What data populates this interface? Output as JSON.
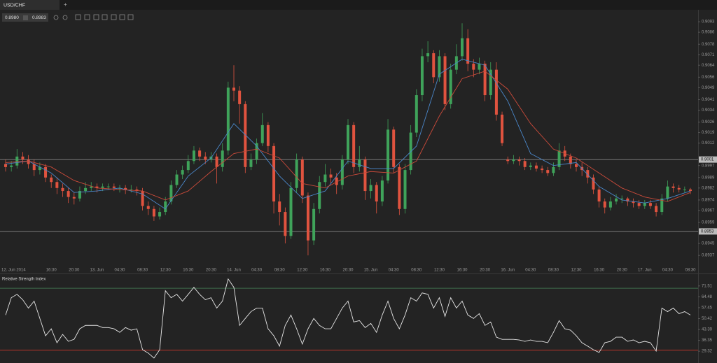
{
  "tab": "USD/CHF",
  "new_tab": "+",
  "quote": {
    "bid": "0.8980",
    "ask": "0.8983"
  },
  "chart_data": [
    {
      "type": "candlestick",
      "categories": [
        null,
        "12. Jun 2014",
        null,
        null,
        null,
        null,
        null,
        null,
        "16:30",
        null,
        null,
        null,
        "20:30",
        null,
        null,
        null,
        "13. Jun",
        null,
        null,
        null,
        "04:30",
        null,
        null,
        null,
        "08:30",
        null,
        null,
        null,
        "12:30",
        null,
        null,
        null,
        "16:30",
        null,
        null,
        null,
        "20:30",
        null,
        null,
        null,
        "14. Jun",
        null,
        null,
        null,
        "04:30",
        null,
        null,
        null,
        "08:30",
        null,
        null,
        null,
        "12:30",
        null,
        null,
        null,
        "16:30",
        null,
        null,
        null,
        "20:30",
        null,
        null,
        null,
        "15. Jun",
        null,
        null,
        null,
        "04:30",
        null,
        null,
        null,
        "08:30",
        null,
        null,
        null,
        "12:30",
        null,
        null,
        null,
        "16:30",
        null,
        null,
        null,
        "20:30",
        null,
        null,
        null,
        "16. Jun",
        null,
        null,
        null,
        "04:30",
        null,
        null,
        null,
        "08:30",
        null,
        null,
        null,
        "12:30",
        null,
        null,
        null,
        "16:30",
        null,
        null,
        null,
        "20:30",
        null,
        null,
        null,
        "17. Jun",
        null,
        null,
        null,
        "04:30",
        null,
        null,
        null,
        "08:30"
      ],
      "open": [
        0.8998,
        0.8996,
        0.8997,
        0.9003,
        0.9001,
        0.8998,
        0.8994,
        0.8996,
        0.8989,
        0.8986,
        0.8982,
        0.898,
        0.8976,
        0.8975,
        0.898,
        0.8982,
        0.8983,
        0.8982,
        0.8983,
        0.8983,
        0.8982,
        0.8982,
        0.8981,
        0.8981,
        0.898,
        0.897,
        0.8968,
        0.8963,
        0.8966,
        0.8973,
        0.8984,
        0.8991,
        0.8994,
        0.9,
        0.9007,
        0.9003,
        0.9001,
        0.9003,
        0.8996,
        0.9007,
        0.9049,
        0.9047,
        0.9038,
        0.8996,
        0.9001,
        0.9012,
        0.9024,
        0.901,
        0.8973,
        0.8966,
        0.895,
        0.8982,
        0.9001,
        0.8977,
        0.8947,
        0.8968,
        0.8986,
        0.8991,
        0.8989,
        0.8984,
        0.9001,
        0.9024,
        0.8996,
        0.9001,
        0.898,
        0.8984,
        0.8973,
        0.8987,
        0.9021,
        0.8996,
        0.8968,
        0.8994,
        0.9019,
        0.9044,
        0.907,
        0.9072,
        0.9056,
        0.907,
        0.9038,
        0.9061,
        0.907,
        0.9082,
        0.9065,
        0.9061,
        0.9065,
        0.9044,
        0.9061,
        0.9031,
        0.9001,
        0.9,
        0.9001,
        0.9,
        0.8996,
        0.8997,
        0.8995,
        0.8994,
        0.8992,
        0.8996,
        0.9007,
        0.9003,
        0.8998,
        0.8996,
        0.8994,
        0.8989,
        0.8981,
        0.8973,
        0.8969,
        0.8973,
        0.8975,
        0.8975,
        0.8973,
        0.8972,
        0.897,
        0.8972,
        0.897,
        0.8966,
        0.8975,
        0.8983,
        0.8982,
        0.8981,
        0.8981
      ],
      "high": [
        0.9001,
        0.9,
        0.9008,
        0.9006,
        0.9004,
        0.9001,
        0.8999,
        0.8998,
        0.8991,
        0.8989,
        0.8985,
        0.8982,
        0.8979,
        0.8983,
        0.8986,
        0.8986,
        0.8985,
        0.8985,
        0.8985,
        0.8985,
        0.8984,
        0.8984,
        0.8984,
        0.8983,
        0.8982,
        0.8973,
        0.897,
        0.8969,
        0.8976,
        0.8987,
        0.8994,
        0.8997,
        0.9004,
        0.901,
        0.9009,
        0.9006,
        0.9006,
        0.9005,
        0.9012,
        0.9053,
        0.9064,
        0.905,
        0.904,
        0.9005,
        0.9015,
        0.9032,
        0.9026,
        0.9012,
        0.8978,
        0.8969,
        0.8986,
        0.9005,
        0.9003,
        0.8979,
        0.8972,
        0.899,
        0.8998,
        0.8995,
        0.8992,
        0.9004,
        0.9028,
        0.9026,
        0.901,
        0.9003,
        0.8988,
        0.8986,
        0.899,
        0.9028,
        0.9023,
        0.8998,
        0.8998,
        0.9024,
        0.9048,
        0.9075,
        0.908,
        0.9074,
        0.9074,
        0.9072,
        0.9065,
        0.9078,
        0.9092,
        0.9088,
        0.9068,
        0.9069,
        0.9067,
        0.9066,
        0.9066,
        0.9033,
        0.9003,
        0.9004,
        0.9003,
        0.9002,
        0.8999,
        0.8999,
        0.8997,
        0.8996,
        0.8999,
        0.9012,
        0.901,
        0.9005,
        0.9001,
        0.8999,
        0.8996,
        0.8991,
        0.8983,
        0.8975,
        0.8976,
        0.8978,
        0.8977,
        0.8976,
        0.8975,
        0.8974,
        0.8974,
        0.8974,
        0.8972,
        0.8978,
        0.8987,
        0.8985,
        0.8984,
        0.8983,
        0.8982
      ],
      "low": [
        0.8993,
        0.8993,
        0.8995,
        0.8998,
        0.8995,
        0.899,
        0.8991,
        0.8986,
        0.8982,
        0.8978,
        0.8976,
        0.8972,
        0.8971,
        0.8973,
        0.8978,
        0.898,
        0.8979,
        0.898,
        0.8981,
        0.898,
        0.8979,
        0.8978,
        0.8979,
        0.8977,
        0.8967,
        0.8964,
        0.896,
        0.8961,
        0.8964,
        0.8971,
        0.8982,
        0.8988,
        0.8992,
        0.8998,
        0.9,
        0.8998,
        0.8999,
        0.8985,
        0.8993,
        0.9004,
        0.904,
        0.9025,
        0.8992,
        0.8994,
        0.8998,
        0.901,
        0.9006,
        0.8965,
        0.8957,
        0.8945,
        0.8948,
        0.8979,
        0.8972,
        0.8937,
        0.8944,
        0.8965,
        0.8983,
        0.8985,
        0.8978,
        0.8981,
        0.8998,
        0.8992,
        0.8993,
        0.8974,
        0.8975,
        0.8965,
        0.897,
        0.8985,
        0.8992,
        0.8964,
        0.8965,
        0.8991,
        0.9016,
        0.904,
        0.9066,
        0.9052,
        0.9053,
        0.9034,
        0.9035,
        0.9058,
        0.9067,
        0.906,
        0.9056,
        0.9058,
        0.904,
        0.9041,
        0.9027,
        0.901,
        0.8998,
        0.8998,
        0.8997,
        0.8994,
        0.8994,
        0.8993,
        0.8992,
        0.899,
        0.899,
        0.8994,
        0.9,
        0.8995,
        0.8993,
        0.899,
        0.8985,
        0.8978,
        0.8969,
        0.8965,
        0.8967,
        0.8971,
        0.8972,
        0.897,
        0.8969,
        0.8968,
        0.8968,
        0.8968,
        0.8963,
        0.8964,
        0.8973,
        0.8979,
        0.8979,
        0.8979,
        0.8978
      ],
      "close": [
        0.8996,
        0.8997,
        0.9003,
        0.9001,
        0.8998,
        0.8994,
        0.8996,
        0.8989,
        0.8986,
        0.8982,
        0.898,
        0.8976,
        0.8975,
        0.898,
        0.8982,
        0.8983,
        0.8982,
        0.8983,
        0.8983,
        0.8982,
        0.8982,
        0.8981,
        0.8981,
        0.898,
        0.897,
        0.8968,
        0.8963,
        0.8966,
        0.8973,
        0.8984,
        0.8991,
        0.8994,
        0.9,
        0.9007,
        0.9003,
        0.9001,
        0.9003,
        0.8996,
        0.9007,
        0.9049,
        0.9047,
        0.9038,
        0.8996,
        0.9001,
        0.9012,
        0.9024,
        0.901,
        0.8973,
        0.8966,
        0.895,
        0.8982,
        0.9001,
        0.8977,
        0.8947,
        0.8968,
        0.8986,
        0.8991,
        0.8989,
        0.8984,
        0.9001,
        0.9024,
        0.8996,
        0.9001,
        0.898,
        0.8984,
        0.8973,
        0.8987,
        0.9021,
        0.8996,
        0.8968,
        0.8994,
        0.9019,
        0.9044,
        0.907,
        0.9072,
        0.9056,
        0.907,
        0.9038,
        0.9061,
        0.907,
        0.9082,
        0.9065,
        0.9061,
        0.9065,
        0.9044,
        0.9061,
        0.9031,
        0.9012,
        0.9,
        0.9001,
        0.9,
        0.8996,
        0.8997,
        0.8995,
        0.8994,
        0.8992,
        0.8996,
        0.9007,
        0.9003,
        0.8998,
        0.8996,
        0.8994,
        0.8989,
        0.8981,
        0.8973,
        0.8969,
        0.8973,
        0.8975,
        0.8975,
        0.8973,
        0.8972,
        0.897,
        0.8972,
        0.897,
        0.8966,
        0.8975,
        0.8983,
        0.8982,
        0.8981,
        0.8981,
        0.898
      ],
      "up_color": "#3fa35a",
      "down_color": "#e0533f",
      "moving_averages": [
        {
          "color": "#4a86c8",
          "x": [
            0,
            4,
            8,
            12,
            16,
            20,
            24,
            28,
            32,
            36,
            40,
            44,
            48,
            52,
            56,
            60,
            64,
            68,
            72,
            76,
            80,
            84,
            88,
            92,
            96,
            100,
            104,
            108,
            112,
            116,
            120
          ],
          "values": [
            0.8998,
            0.9,
            0.8992,
            0.8979,
            0.898,
            0.8982,
            0.8978,
            0.8968,
            0.899,
            0.9002,
            0.9025,
            0.901,
            0.899,
            0.8975,
            0.898,
            0.9,
            0.8995,
            0.8995,
            0.901,
            0.9058,
            0.9068,
            0.9064,
            0.904,
            0.9005,
            0.8997,
            0.8999,
            0.8983,
            0.8974,
            0.8972,
            0.8975,
            0.898
          ]
        },
        {
          "color": "#c94a3a",
          "x": [
            0,
            4,
            8,
            12,
            16,
            20,
            24,
            28,
            32,
            36,
            40,
            44,
            48,
            52,
            56,
            60,
            64,
            68,
            72,
            76,
            80,
            84,
            88,
            92,
            96,
            100,
            104,
            108,
            112,
            116,
            120
          ],
          "values": [
            0.8999,
            0.9,
            0.8996,
            0.8987,
            0.8982,
            0.8981,
            0.898,
            0.8974,
            0.898,
            0.8993,
            0.9005,
            0.9008,
            0.9002,
            0.8985,
            0.8982,
            0.899,
            0.8993,
            0.8992,
            0.9,
            0.903,
            0.9055,
            0.906,
            0.9048,
            0.9025,
            0.9008,
            0.9002,
            0.8992,
            0.8982,
            0.8976,
            0.8973,
            0.8979
          ]
        }
      ],
      "horizontal_lines": [
        {
          "value": 0.9001
        },
        {
          "value": 0.8953
        }
      ],
      "ylim": [
        0.8931,
        0.9101
      ],
      "yticks": [
        0.9093,
        0.9086,
        0.9078,
        0.9071,
        0.9064,
        0.9056,
        0.9049,
        0.9041,
        0.9034,
        0.9026,
        0.9019,
        0.9012,
        0.8997,
        0.8989,
        0.8982,
        0.8974,
        0.8967,
        0.8959,
        0.8945,
        0.8937
      ]
    },
    {
      "type": "line",
      "title": "Relative Strength Index",
      "color": "#e6e6e6",
      "values": [
        52.7,
        63.9,
        66.1,
        62.6,
        57.2,
        61.7,
        50.5,
        39.3,
        43.8,
        34.8,
        40.2,
        35.7,
        37.0,
        43.8,
        46.0,
        46.0,
        46.0,
        44.6,
        44.6,
        43.8,
        41.5,
        44.6,
        42.9,
        43.8,
        30.3,
        28.1,
        24.9,
        30.3,
        68.4,
        63.9,
        66.1,
        61.7,
        66.1,
        70.6,
        66.1,
        62.6,
        63.9,
        57.2,
        61.7,
        76.0,
        70.6,
        46.0,
        50.5,
        54.9,
        57.2,
        57.2,
        43.8,
        39.3,
        32.6,
        46.0,
        52.7,
        43.8,
        33.9,
        43.8,
        50.5,
        46.0,
        43.8,
        43.8,
        50.5,
        57.2,
        61.7,
        48.2,
        49.1,
        44.6,
        47.3,
        41.5,
        52.7,
        61.7,
        50.5,
        43.8,
        52.7,
        63.9,
        61.7,
        67.0,
        66.1,
        57.2,
        63.9,
        51.8,
        63.9,
        57.2,
        61.7,
        52.7,
        50.5,
        53.6,
        46.0,
        48.2,
        38.4,
        37.0,
        37.0,
        37.0,
        36.6,
        35.7,
        36.6,
        35.7,
        35.7,
        34.8,
        41.5,
        49.1,
        43.8,
        42.9,
        39.3,
        34.8,
        32.6,
        30.3,
        28.5,
        34.8,
        35.7,
        38.4,
        38.4,
        35.7,
        36.6,
        34.8,
        35.7,
        34.8,
        29.4,
        57.2,
        54.9,
        57.2,
        53.6,
        54.9,
        52.7
      ],
      "levels": [
        {
          "value": 70,
          "color": "#3e6b4c"
        },
        {
          "value": 30,
          "color": "#b8352c"
        }
      ],
      "ylim": [
        22.6,
        77.3
      ],
      "yticks": [
        71.51,
        64.48,
        57.45,
        50.42,
        43.39,
        36.35,
        29.32
      ]
    }
  ]
}
